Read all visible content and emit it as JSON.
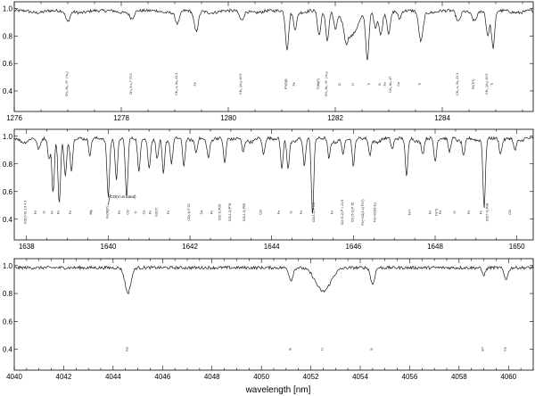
{
  "xlabel": "wavelength [nm]",
  "chart_data": [
    {
      "type": "line",
      "xlim": [
        1276,
        1285.7
      ],
      "ylim": [
        0.25,
        1.05
      ],
      "xticks": [
        1276,
        1278,
        1280,
        1282,
        1284
      ],
      "yticks": [
        0.4,
        0.6,
        0.8,
        1.0
      ],
      "ytick_labels": [
        "0.4",
        "0.6",
        "0.8",
        "1.0"
      ],
      "absorption_lines": [
        {
          "x": 1277.0,
          "depth": 0.08,
          "width": 0.04
        },
        {
          "x": 1278.2,
          "depth": 0.05,
          "width": 0.04
        },
        {
          "x": 1279.05,
          "depth": 0.09,
          "width": 0.04
        },
        {
          "x": 1279.4,
          "depth": 0.15,
          "width": 0.04
        },
        {
          "x": 1280.25,
          "depth": 0.07,
          "width": 0.04
        },
        {
          "x": 1281.1,
          "depth": 0.28,
          "width": 0.03
        },
        {
          "x": 1281.25,
          "depth": 0.12,
          "width": 0.03
        },
        {
          "x": 1281.7,
          "depth": 0.18,
          "width": 0.03
        },
        {
          "x": 1281.85,
          "depth": 0.22,
          "width": 0.03
        },
        {
          "x": 1282.0,
          "depth": 0.12,
          "width": 0.03
        },
        {
          "x": 1282.2,
          "depth": 0.1,
          "width": 0.03
        },
        {
          "x": 1282.3,
          "depth": 0.18,
          "width": 0.12
        },
        {
          "x": 1282.6,
          "depth": 0.35,
          "width": 0.03
        },
        {
          "x": 1282.75,
          "depth": 0.12,
          "width": 0.03
        },
        {
          "x": 1282.85,
          "depth": 0.17,
          "width": 0.03
        },
        {
          "x": 1283.0,
          "depth": 0.15,
          "width": 0.03
        },
        {
          "x": 1283.2,
          "depth": 0.06,
          "width": 0.03
        },
        {
          "x": 1283.6,
          "depth": 0.22,
          "width": 0.04
        },
        {
          "x": 1284.3,
          "depth": 0.08,
          "width": 0.04
        },
        {
          "x": 1284.6,
          "depth": 0.06,
          "width": 0.04
        },
        {
          "x": 1284.85,
          "depth": 0.18,
          "width": 0.03
        },
        {
          "x": 1284.95,
          "depth": 0.27,
          "width": 0.03
        }
      ],
      "line_ids": [
        {
          "x": 1277.0,
          "label": "CH₄ 8ν₂ 4?· (+ν₄)"
        },
        {
          "x": 1278.2,
          "label": "CH₄ 8 ν₂? 70.3"
        },
        {
          "x": 1279.05,
          "label": "CH₄ ν₂ 3ν₄ 22.3"
        },
        {
          "x": 1279.4,
          "label": "Fe"
        },
        {
          "x": 1280.25,
          "label": "CH₄ (2ν₃) 40.5"
        },
        {
          "x": 1281.1,
          "label": "P?(R)B"
        },
        {
          "x": 1281.25,
          "label": "Fe"
        },
        {
          "x": 1281.7,
          "label": "Ti(Mg?)"
        },
        {
          "x": 1281.85,
          "label": "CH₄ 8ν₂ 4?· (+ν₄)"
        },
        {
          "x": 1282.1,
          "label": "Cr"
        },
        {
          "x": 1282.35,
          "label": "H"
        },
        {
          "x": 1282.65,
          "label": "Ti"
        },
        {
          "x": 1282.85,
          "label": "Cr"
        },
        {
          "x": 1282.95,
          "label": "Fe"
        },
        {
          "x": 1283.05,
          "label": "CH₄ 8ν₂ 4?·"
        },
        {
          "x": 1283.2,
          "label": "Ca"
        },
        {
          "x": 1283.6,
          "label": "Ti"
        },
        {
          "x": 1284.3,
          "label": "CH₄ ν₂ 3ν₄ 22.3"
        },
        {
          "x": 1284.6,
          "label": "Fe(Ti?)"
        },
        {
          "x": 1284.85,
          "label": "CH₄ (2ν₃) 40.5"
        },
        {
          "x": 1284.95,
          "label": "Ti"
        }
      ]
    },
    {
      "type": "line",
      "xlim": [
        1637.7,
        1650.4
      ],
      "ylim": [
        0.25,
        1.05
      ],
      "xticks": [
        1638,
        1640,
        1642,
        1644,
        1646,
        1648,
        1650
      ],
      "yticks": [
        0.4,
        0.6,
        0.8,
        1.0
      ],
      "ytick_labels": [
        "0.4",
        "0.6",
        "0.8",
        "1.0"
      ],
      "annotation": {
        "text": "CO(V=6 band)",
        "x": 1640.0
      },
      "absorption_lines": [
        {
          "x": 1638.3,
          "depth": 0.08,
          "width": 0.04
        },
        {
          "x": 1638.55,
          "depth": 0.15,
          "width": 0.03
        },
        {
          "x": 1638.65,
          "depth": 0.4,
          "width": 0.03
        },
        {
          "x": 1638.8,
          "depth": 0.48,
          "width": 0.03
        },
        {
          "x": 1638.95,
          "depth": 0.25,
          "width": 0.03
        },
        {
          "x": 1639.1,
          "depth": 0.22,
          "width": 0.03
        },
        {
          "x": 1639.55,
          "depth": 0.12,
          "width": 0.03
        },
        {
          "x": 1640.0,
          "depth": 0.4,
          "width": 0.03
        },
        {
          "x": 1640.2,
          "depth": 0.3,
          "width": 0.03
        },
        {
          "x": 1640.45,
          "depth": 0.42,
          "width": 0.03
        },
        {
          "x": 1640.75,
          "depth": 0.25,
          "width": 0.03
        },
        {
          "x": 1641.0,
          "depth": 0.2,
          "width": 0.03
        },
        {
          "x": 1641.2,
          "depth": 0.15,
          "width": 0.03
        },
        {
          "x": 1641.35,
          "depth": 0.25,
          "width": 0.03
        },
        {
          "x": 1641.55,
          "depth": 0.18,
          "width": 0.03
        },
        {
          "x": 1641.85,
          "depth": 0.2,
          "width": 0.03
        },
        {
          "x": 1642.15,
          "depth": 0.1,
          "width": 0.03
        },
        {
          "x": 1642.45,
          "depth": 0.12,
          "width": 0.03
        },
        {
          "x": 1642.85,
          "depth": 0.18,
          "width": 0.03
        },
        {
          "x": 1643.3,
          "depth": 0.1,
          "width": 0.03
        },
        {
          "x": 1643.8,
          "depth": 0.12,
          "width": 0.03
        },
        {
          "x": 1644.25,
          "depth": 0.22,
          "width": 0.03
        },
        {
          "x": 1644.4,
          "depth": 0.2,
          "width": 0.03
        },
        {
          "x": 1644.8,
          "depth": 0.2,
          "width": 0.03
        },
        {
          "x": 1645.0,
          "depth": 0.55,
          "width": 0.03
        },
        {
          "x": 1645.4,
          "depth": 0.14,
          "width": 0.03
        },
        {
          "x": 1645.75,
          "depth": 0.12,
          "width": 0.03
        },
        {
          "x": 1646.0,
          "depth": 0.2,
          "width": 0.03
        },
        {
          "x": 1646.4,
          "depth": 0.12,
          "width": 0.03
        },
        {
          "x": 1646.95,
          "depth": 0.08,
          "width": 0.03
        },
        {
          "x": 1647.3,
          "depth": 0.28,
          "width": 0.03
        },
        {
          "x": 1647.7,
          "depth": 0.1,
          "width": 0.03
        },
        {
          "x": 1648.0,
          "depth": 0.16,
          "width": 0.03
        },
        {
          "x": 1648.35,
          "depth": 0.1,
          "width": 0.03
        },
        {
          "x": 1648.7,
          "depth": 0.12,
          "width": 0.03
        },
        {
          "x": 1649.2,
          "depth": 0.5,
          "width": 0.03
        },
        {
          "x": 1649.6,
          "depth": 0.1,
          "width": 0.03
        },
        {
          "x": 1649.95,
          "depth": 0.08,
          "width": 0.03
        }
      ],
      "line_ids": [
        {
          "x": 1638.0,
          "label": "CO(V=6) 1.9 4 3"
        },
        {
          "x": 1638.25,
          "label": "Fe"
        },
        {
          "x": 1638.45,
          "label": "Si"
        },
        {
          "x": 1638.65,
          "label": "Ni"
        },
        {
          "x": 1638.8,
          "label": "Fe"
        },
        {
          "x": 1639.1,
          "label": "Fe"
        },
        {
          "x": 1639.6,
          "label": "Mg"
        },
        {
          "x": 1640.0,
          "label": "Fe(Mg?)"
        },
        {
          "x": 1640.3,
          "label": "Fe"
        },
        {
          "x": 1640.5,
          "label": "CO"
        },
        {
          "x": 1640.7,
          "label": "Ti"
        },
        {
          "x": 1640.9,
          "label": "Ca"
        },
        {
          "x": 1641.05,
          "label": "Fe"
        },
        {
          "x": 1641.2,
          "label": "CO(?)"
        },
        {
          "x": 1641.5,
          "label": "Fe"
        },
        {
          "x": 1642.0,
          "label": "CO(-1) P 22"
        },
        {
          "x": 1642.3,
          "label": "Ca"
        },
        {
          "x": 1642.55,
          "label": "Fe"
        },
        {
          "x": 1642.75,
          "label": "CO(-1) P26"
        },
        {
          "x": 1643.0,
          "label": "CO(4-2) P76"
        },
        {
          "x": 1643.35,
          "label": "CO(4-3) P55"
        },
        {
          "x": 1643.75,
          "label": "CO"
        },
        {
          "x": 1644.2,
          "label": "Fe"
        },
        {
          "x": 1644.5,
          "label": "Si"
        },
        {
          "x": 1644.75,
          "label": "Fe"
        },
        {
          "x": 1645.05,
          "label": "CO(4-1) P 5.5"
        },
        {
          "x": 1645.5,
          "label": "Fe"
        },
        {
          "x": 1645.75,
          "label": "CO (5-2) P = 21.5"
        },
        {
          "x": 1646.0,
          "label": "CO (5-2) P 15"
        },
        {
          "x": 1646.25,
          "label": "Fe(+CO(5-2) P27)"
        },
        {
          "x": 1646.55,
          "label": "Fe(+CO(6-3))"
        },
        {
          "x": 1647.4,
          "label": "Fe?"
        },
        {
          "x": 1647.9,
          "label": "Fe"
        },
        {
          "x": 1648.05,
          "label": "Ni(?)"
        },
        {
          "x": 1648.15,
          "label": "Fe"
        },
        {
          "x": 1648.5,
          "label": "Si"
        },
        {
          "x": 1648.85,
          "label": "Fe"
        },
        {
          "x": 1649.15,
          "label": "Fe"
        },
        {
          "x": 1649.3,
          "label": "CO(7-4) P38"
        },
        {
          "x": 1649.85,
          "label": "CO"
        }
      ]
    },
    {
      "type": "line",
      "xlim": [
        4040,
        4061
      ],
      "ylim": [
        0.25,
        1.05
      ],
      "xticks": [
        4040,
        4042,
        4044,
        4046,
        4048,
        4050,
        4052,
        4054,
        4056,
        4058,
        4060
      ],
      "yticks": [
        0.4,
        0.6,
        0.8,
        1.0
      ],
      "ytick_labels": [
        "0.4",
        "0.6",
        "0.8",
        "1.0"
      ],
      "absorption_lines": [
        {
          "x": 4044.6,
          "depth": 0.18,
          "width": 0.12
        },
        {
          "x": 4051.2,
          "depth": 0.09,
          "width": 0.08
        },
        {
          "x": 4052.5,
          "depth": 0.17,
          "width": 0.3
        },
        {
          "x": 4054.5,
          "depth": 0.12,
          "width": 0.08
        },
        {
          "x": 4059.0,
          "depth": 0.05,
          "width": 0.07
        },
        {
          "x": 4059.9,
          "depth": 0.08,
          "width": 0.08
        }
      ],
      "line_ids": [
        {
          "x": 4044.6,
          "label": "Na"
        },
        {
          "x": 4051.2,
          "label": "Si"
        },
        {
          "x": 4052.5,
          "label": "H"
        },
        {
          "x": 4054.5,
          "label": "Si"
        },
        {
          "x": 4059.0,
          "label": "Si?"
        },
        {
          "x": 4059.9,
          "label": "Ca"
        }
      ]
    }
  ]
}
